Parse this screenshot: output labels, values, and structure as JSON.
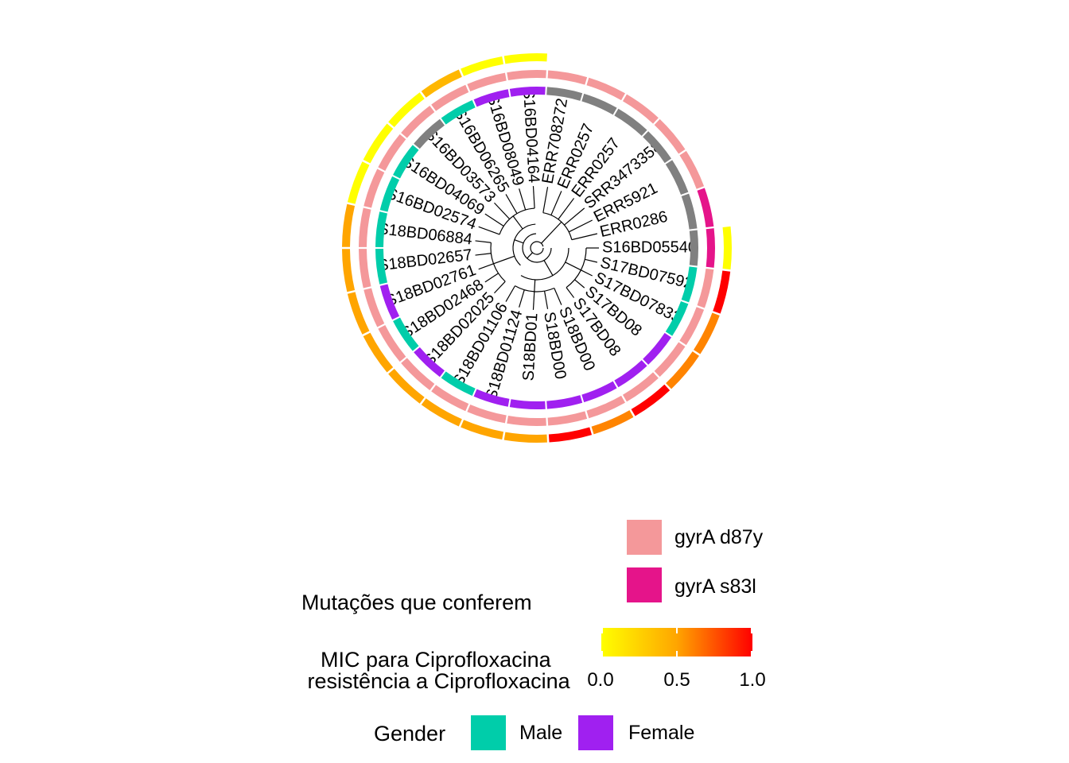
{
  "chart_data": {
    "type": "circular-phylogenetic-tree",
    "tips": [
      {
        "label": "S16BD05540",
        "gender": "unknown",
        "mutation": "gyrA s83l",
        "mic": 0.0
      },
      {
        "label": "S17BD07592",
        "gender": "Male",
        "mutation": "gyrA d87y",
        "mic": 1.0
      },
      {
        "label": "S17BD07833",
        "gender": "Male",
        "mutation": "gyrA d87y",
        "mic": 0.6
      },
      {
        "label": "S17BD08",
        "gender": "Female",
        "mutation": "gyrA d87y",
        "mic": 0.6
      },
      {
        "label": "S17BD08",
        "gender": "Female",
        "mutation": "gyrA d87y",
        "mic": 1.0
      },
      {
        "label": "S18BD00",
        "gender": "Female",
        "mutation": "gyrA d87y",
        "mic": 0.6
      },
      {
        "label": "S18BD00",
        "gender": "Female",
        "mutation": "gyrA d87y",
        "mic": 1.0
      },
      {
        "label": "S18BD01",
        "gender": "Female",
        "mutation": "gyrA d87y",
        "mic": 0.5
      },
      {
        "label": "S18BD01124",
        "gender": "Female",
        "mutation": "gyrA d87y",
        "mic": 0.5
      },
      {
        "label": "S18BD01106",
        "gender": "Male",
        "mutation": "gyrA d87y",
        "mic": 0.5
      },
      {
        "label": "S18BD02025",
        "gender": "Female",
        "mutation": "gyrA d87y",
        "mic": 0.5
      },
      {
        "label": "S18BD02468",
        "gender": "Male",
        "mutation": "gyrA d87y",
        "mic": 0.5
      },
      {
        "label": "S18BD02761",
        "gender": "Female",
        "mutation": "gyrA d87y",
        "mic": 0.5
      },
      {
        "label": "S18BD02657",
        "gender": "Male",
        "mutation": "gyrA d87y",
        "mic": 0.5
      },
      {
        "label": "S18BD06884",
        "gender": "Male",
        "mutation": "gyrA d87y",
        "mic": 0.5
      },
      {
        "label": "S16BD02574",
        "gender": "Male",
        "mutation": "gyrA d87y",
        "mic": 0.0
      },
      {
        "label": "S16BD04069",
        "gender": "Male",
        "mutation": "gyrA d87y",
        "mic": 0.0
      },
      {
        "label": "S16BD03573",
        "gender": "unknown",
        "mutation": "gyrA d87y",
        "mic": 0.0
      },
      {
        "label": "S16BD06265",
        "gender": "Male",
        "mutation": "gyrA d87y",
        "mic": 0.4
      },
      {
        "label": "S16BD08049",
        "gender": "Female",
        "mutation": "gyrA d87y",
        "mic": 0.0
      },
      {
        "label": "S16BD04164",
        "gender": "Female",
        "mutation": "gyrA d87y",
        "mic": 0.0
      },
      {
        "label": "ERR708272",
        "gender": "unknown",
        "mutation": "gyrA d87y",
        "mic": null
      },
      {
        "label": "ERR0257",
        "gender": "unknown",
        "mutation": "gyrA d87y",
        "mic": null
      },
      {
        "label": "ERR0257",
        "gender": "unknown",
        "mutation": "gyrA d87y",
        "mic": null
      },
      {
        "label": "SRR3473358",
        "gender": "unknown",
        "mutation": "gyrA d87y",
        "mic": null
      },
      {
        "label": "ERR5921",
        "gender": "unknown",
        "mutation": "gyrA d87y",
        "mic": null
      },
      {
        "label": "ERR0286",
        "gender": "unknown",
        "mutation": "gyrA s83l",
        "mic": null
      }
    ],
    "legend": {
      "mutation": {
        "title_line1": "Mutações que conferem",
        "title_line2": " resistência a Ciprofloxacina",
        "items": [
          {
            "label": "gyrA d87y",
            "color": "#f4989a"
          },
          {
            "label": "gyrA s83l",
            "color": "#e5148a"
          }
        ]
      },
      "mic": {
        "title": "MIC para Ciprofloxacina",
        "ticks": [
          "0.0",
          "0.5",
          "1.0"
        ],
        "colors": [
          "#ffff00",
          "#ffa500",
          "#ff0000"
        ]
      },
      "gender": {
        "title": "Gender",
        "items": [
          {
            "label": "Male",
            "color": "#00cdaa"
          },
          {
            "label": "Female",
            "color": "#a020f0"
          }
        ]
      }
    },
    "unknown_gender_color": "#808080"
  }
}
